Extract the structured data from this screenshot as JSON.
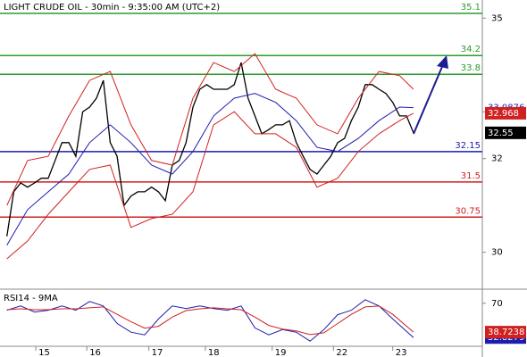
{
  "chart_data": [
    {
      "type": "line",
      "title": "LIGHT CRUDE OIL - 30min - 9:35:00 AM (UTC+2)",
      "xlim": [
        0,
        70
      ],
      "ylim": [
        29.25,
        35.386
      ],
      "yticks": [
        35,
        33,
        32,
        30
      ],
      "levels": [
        {
          "value": 35.1,
          "color": "#2a9d2a"
        },
        {
          "value": 34.2,
          "color": "#2a9d2a"
        },
        {
          "value": 33.8,
          "color": "#2a9d2a"
        },
        {
          "value": 32.15,
          "color": "#1c1cb0"
        },
        {
          "value": 31.5,
          "color": "#d02020"
        },
        {
          "value": 30.75,
          "color": "#d02020"
        }
      ],
      "series": [
        {
          "color": "#000000",
          "end_label": "box",
          "x": [
            1,
            2,
            3,
            4,
            5,
            6,
            7,
            8,
            9,
            10,
            11,
            12,
            13,
            14,
            15,
            16,
            17,
            18,
            19,
            20,
            21,
            22,
            23,
            24,
            25,
            26,
            27,
            28,
            29,
            30,
            31,
            32,
            33,
            34,
            35,
            36,
            37,
            38,
            39,
            40,
            41,
            42,
            43,
            44,
            45,
            46,
            47,
            48,
            49,
            50,
            51,
            52,
            53,
            54,
            55,
            56,
            57,
            58,
            59,
            60
          ],
          "values": [
            30.34,
            31.29,
            31.48,
            31.39,
            31.48,
            31.58,
            31.58,
            31.96,
            32.34,
            32.34,
            32.05,
            33.0,
            33.1,
            33.29,
            33.67,
            32.34,
            32.05,
            31.0,
            31.2,
            31.29,
            31.29,
            31.39,
            31.29,
            31.1,
            31.86,
            31.96,
            32.34,
            33.1,
            33.48,
            33.58,
            33.48,
            33.48,
            33.48,
            33.58,
            34.05,
            33.29,
            32.91,
            32.53,
            32.62,
            32.72,
            32.72,
            32.81,
            32.34,
            32.05,
            31.77,
            31.67,
            31.86,
            32.05,
            32.34,
            32.43,
            32.81,
            33.1,
            33.58,
            33.58,
            33.48,
            33.39,
            33.2,
            32.91,
            32.91,
            32.55
          ]
        },
        {
          "color": "#1c1cb0",
          "end_label": "text",
          "x": [
            1,
            4,
            7,
            10,
            13,
            16,
            19,
            22,
            25,
            28,
            31,
            34,
            37,
            40,
            43,
            46,
            49,
            52,
            55,
            58,
            60
          ],
          "values": [
            30.15,
            30.91,
            31.29,
            31.67,
            32.34,
            32.72,
            32.34,
            31.86,
            31.67,
            32.15,
            32.91,
            33.29,
            33.39,
            33.2,
            32.81,
            32.24,
            32.15,
            32.43,
            32.81,
            33.1,
            33.0876
          ]
        },
        {
          "color": "#d02020",
          "x": [
            1,
            4,
            7,
            10,
            13,
            16,
            19,
            22,
            25,
            28,
            31,
            34,
            37,
            40,
            43,
            46,
            49,
            52,
            55,
            58,
            60
          ],
          "values": [
            31.0,
            31.96,
            32.05,
            32.91,
            33.67,
            33.86,
            32.72,
            31.96,
            31.86,
            33.29,
            34.05,
            33.86,
            34.24,
            33.48,
            33.29,
            32.72,
            32.53,
            33.29,
            33.86,
            33.77,
            33.48
          ]
        },
        {
          "color": "#d02020",
          "end_label": "box",
          "x": [
            1,
            4,
            7,
            10,
            13,
            16,
            19,
            22,
            25,
            28,
            31,
            34,
            37,
            40,
            43,
            46,
            49,
            52,
            55,
            58,
            60
          ],
          "values": [
            29.86,
            30.24,
            30.81,
            31.29,
            31.77,
            31.86,
            30.53,
            30.72,
            30.81,
            31.29,
            32.72,
            33.0,
            32.53,
            32.53,
            32.24,
            31.39,
            31.58,
            32.15,
            32.53,
            32.81,
            32.968
          ]
        }
      ]
    },
    {
      "type": "line",
      "title": "RSI14 - 9MA",
      "xlim": [
        0,
        70
      ],
      "ylim": [
        19.5,
        83.3
      ],
      "yticks": [
        70
      ],
      "xticks": [
        {
          "value": 5.2,
          "label": "15"
        },
        {
          "value": 12.6,
          "label": "16"
        },
        {
          "value": 21.6,
          "label": "17"
        },
        {
          "value": 29.8,
          "label": "18"
        },
        {
          "value": 39.5,
          "label": "19"
        },
        {
          "value": 48.4,
          "label": "22"
        },
        {
          "value": 57.0,
          "label": "23"
        }
      ],
      "series": [
        {
          "color": "#1c1cb0",
          "end_label": "box",
          "x": [
            1,
            3,
            5,
            7,
            9,
            11,
            13,
            15,
            17,
            19,
            21,
            23,
            25,
            27,
            29,
            31,
            33,
            35,
            37,
            39,
            41,
            43,
            45,
            47,
            49,
            51,
            53,
            55,
            57,
            60
          ],
          "values": [
            62.4,
            67.1,
            60.5,
            62.4,
            67.1,
            62.4,
            71.9,
            67.1,
            48.1,
            38.6,
            35.7,
            52.9,
            67.1,
            64.3,
            67.1,
            64.3,
            62.4,
            67.1,
            43.3,
            35.7,
            41.4,
            38.6,
            29.0,
            41.4,
            57.6,
            62.4,
            73.8,
            67.1,
            52.9,
            32.8279
          ]
        },
        {
          "color": "#d02020",
          "end_label": "box",
          "x": [
            1,
            3,
            5,
            7,
            9,
            11,
            13,
            15,
            17,
            19,
            21,
            23,
            25,
            27,
            29,
            31,
            33,
            35,
            37,
            39,
            41,
            43,
            45,
            47,
            49,
            51,
            53,
            55,
            57,
            60
          ],
          "values": [
            63,
            64,
            63,
            63,
            64,
            64,
            65,
            66,
            58,
            50,
            43,
            45,
            55,
            62,
            64,
            65,
            64,
            63,
            55,
            46,
            42,
            40,
            36,
            38,
            48,
            58,
            66,
            67,
            58,
            38.7238
          ]
        }
      ]
    }
  ]
}
